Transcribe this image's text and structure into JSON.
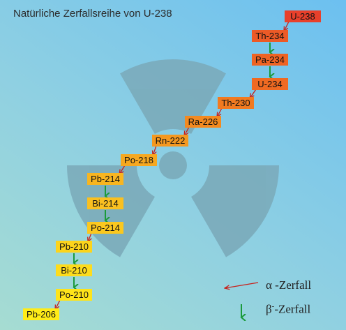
{
  "title": "Natürliche Zerfallsreihe von U-238",
  "nuclides": [
    {
      "label": "U-238",
      "color": "#e8402b"
    },
    {
      "label": "Th-234",
      "color": "#ec5a27"
    },
    {
      "label": "Pa-234",
      "color": "#ee6323"
    },
    {
      "label": "U-234",
      "color": "#ef6a22"
    },
    {
      "label": "Th-230",
      "color": "#f17a20"
    },
    {
      "label": "Ra-226",
      "color": "#f38a20"
    },
    {
      "label": "Rn-222",
      "color": "#f49820"
    },
    {
      "label": "Po-218",
      "color": "#f6a820"
    },
    {
      "label": "Pb-214",
      "color": "#f8b520"
    },
    {
      "label": "Bi-214",
      "color": "#fac020"
    },
    {
      "label": "Po-214",
      "color": "#fbc81e"
    },
    {
      "label": "Pb-210",
      "color": "#fcd41c"
    },
    {
      "label": "Bi-210",
      "color": "#fddc1c"
    },
    {
      "label": "Po-210",
      "color": "#fee41a"
    },
    {
      "label": "Pb-206",
      "color": "#ffec18"
    }
  ],
  "decays": [
    "alpha",
    "beta",
    "beta",
    "alpha",
    "alpha",
    "alpha",
    "alpha",
    "alpha",
    "beta",
    "beta",
    "alpha",
    "beta",
    "beta",
    "alpha"
  ],
  "legend": {
    "alpha_symbol": "α",
    "alpha_label": " -Zerfall",
    "beta_symbol": "β",
    "beta_sup": "-",
    "beta_label": "-Zerfall"
  },
  "colors": {
    "alpha_arrow": "#c8201a",
    "beta_arrow": "#1a9a3a",
    "symbol": "#7aa9b8"
  },
  "icons": {
    "background": "radiation-trefoil-icon"
  }
}
